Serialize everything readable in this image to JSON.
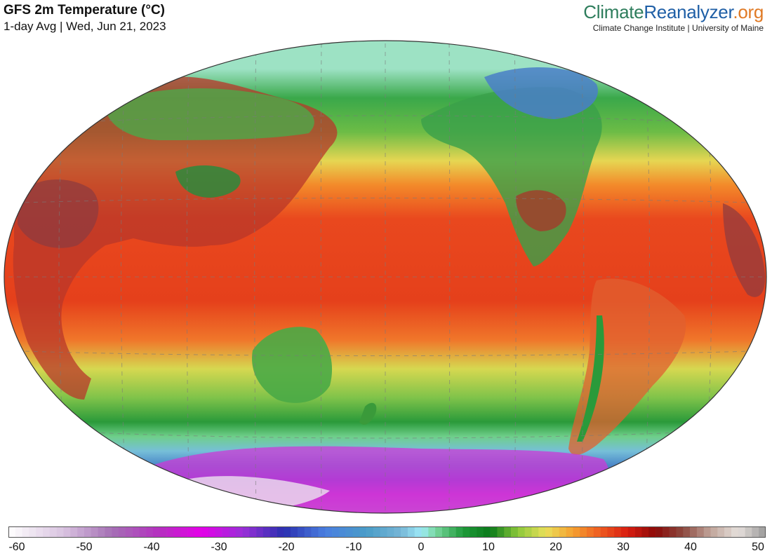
{
  "header": {
    "title": "GFS 2m Temperature (°C)",
    "subtitle": "1-day Avg | Wed, Jun 21, 2023"
  },
  "brand": {
    "part1": "Climate",
    "part2": "Reanalyzer",
    "part3": ".org",
    "tagline": "Climate Change Institute | University of Maine",
    "colors": {
      "part1": "#2e7d5c",
      "part2": "#1f5fa6",
      "part3": "#e07a25"
    }
  },
  "map": {
    "projection": "Winkel Tripel style world map, Pacific-centered",
    "variable": "2m air temperature, 1-day average",
    "zones": [
      {
        "name": "arctic-ocean",
        "temp": 0,
        "color": "#9de2c4"
      },
      {
        "name": "north-temperate",
        "temp": 12,
        "color": "#5cb04a"
      },
      {
        "name": "subtropics",
        "temp": 24,
        "color": "#f07a24"
      },
      {
        "name": "tropics",
        "temp": 28,
        "color": "#e8401c"
      },
      {
        "name": "southern-mid-latitudes",
        "temp": 10,
        "color": "#79c04b"
      },
      {
        "name": "southern-ocean",
        "temp": -5,
        "color": "#7cc0dc"
      },
      {
        "name": "antarctica-coast",
        "temp": -25,
        "color": "#6a4fd0"
      },
      {
        "name": "antarctica-interior",
        "temp": -45,
        "color": "#c05ccc"
      }
    ]
  },
  "colorbar": {
    "min": -60,
    "max": 50,
    "ticks": [
      "-60",
      "-50",
      "-40",
      "-30",
      "-20",
      "-10",
      "0",
      "10",
      "20",
      "30",
      "40",
      "50"
    ],
    "stops": [
      {
        "v": -60,
        "c": "#ffffff"
      },
      {
        "v": -52,
        "c": "#d9c3e0"
      },
      {
        "v": -45,
        "c": "#a570b5"
      },
      {
        "v": -38,
        "c": "#b52fc0"
      },
      {
        "v": -32,
        "c": "#e400e8"
      },
      {
        "v": -26,
        "c": "#9b2fd8"
      },
      {
        "v": -20,
        "c": "#2a2fb0"
      },
      {
        "v": -14,
        "c": "#4a7fe0"
      },
      {
        "v": -8,
        "c": "#4a9cc8"
      },
      {
        "v": -3,
        "c": "#76b6d6"
      },
      {
        "v": 0,
        "c": "#9eeaf7"
      },
      {
        "v": 2,
        "c": "#7ad8a0"
      },
      {
        "v": 6,
        "c": "#1f9a3a"
      },
      {
        "v": 10,
        "c": "#0a7a1a"
      },
      {
        "v": 14,
        "c": "#8bc83a"
      },
      {
        "v": 18,
        "c": "#e9e05a"
      },
      {
        "v": 22,
        "c": "#f5a030"
      },
      {
        "v": 26,
        "c": "#ee5a20"
      },
      {
        "v": 30,
        "c": "#d81c10"
      },
      {
        "v": 34,
        "c": "#8a0a08"
      },
      {
        "v": 38,
        "c": "#8c4a40"
      },
      {
        "v": 42,
        "c": "#c0a49a"
      },
      {
        "v": 46,
        "c": "#e6e0dc"
      },
      {
        "v": 50,
        "c": "#9a9a9a"
      }
    ]
  }
}
